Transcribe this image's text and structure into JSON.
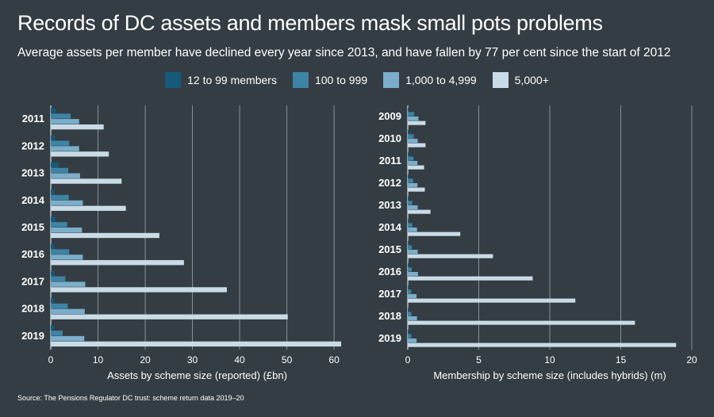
{
  "title": "Records of DC assets and members mask small pots problems",
  "subtitle": "Average assets per member have declined every year since 2013, and have fallen by 77 per cent since the start of 2012",
  "source": "Source: The Pensions Regulator DC trust: scheme return data 2019–20",
  "colors": {
    "background": "#333d43",
    "grid": "#8a9196",
    "text": "#ffffff"
  },
  "chart_data": [
    {
      "type": "bar",
      "orientation": "horizontal",
      "xlabel": "Assets by scheme size (reported) (£bn)",
      "xlim": [
        0,
        62
      ],
      "xticks": [
        0,
        10,
        20,
        30,
        40,
        50,
        60
      ],
      "grid": "vertical",
      "legend": "top-center",
      "categories": [
        "2011",
        "2012",
        "2013",
        "2014",
        "2015",
        "2016",
        "2017",
        "2018",
        "2019"
      ],
      "series": [
        {
          "name": "12 to 99 members",
          "color": "#155a7b",
          "values": [
            1.0,
            0.9,
            1.7,
            0.8,
            1.0,
            0.8,
            0.8,
            0.7,
            0.7
          ]
        },
        {
          "name": "100 to 999",
          "color": "#3d84a6",
          "values": [
            4.2,
            3.9,
            3.7,
            3.8,
            3.5,
            3.9,
            3.1,
            3.6,
            2.5
          ]
        },
        {
          "name": "1,000 to 4,999",
          "color": "#7aaecb",
          "values": [
            6.0,
            6.0,
            6.2,
            6.8,
            6.6,
            6.8,
            7.3,
            7.2,
            7.1
          ]
        },
        {
          "name": "5,000+",
          "color": "#c9dbe6",
          "values": [
            11.2,
            12.3,
            15.0,
            15.9,
            23.0,
            28.2,
            37.3,
            50.2,
            61.5
          ]
        }
      ]
    },
    {
      "type": "bar",
      "orientation": "horizontal",
      "xlabel": "Membership by scheme size (includes hybrids) (m)",
      "xlim": [
        0,
        20
      ],
      "xticks": [
        0,
        5,
        10,
        15,
        20
      ],
      "grid": "vertical",
      "legend": "top-center",
      "categories": [
        "2009",
        "2010",
        "2011",
        "2012",
        "2013",
        "2014",
        "2015",
        "2016",
        "2017",
        "2018",
        "2019"
      ],
      "series": [
        {
          "name": "12 to 99 members",
          "color": "#155a7b",
          "values": [
            0.05,
            0.05,
            0.05,
            0.05,
            0.05,
            0.05,
            0.05,
            0.05,
            0.05,
            0.05,
            0.05
          ]
        },
        {
          "name": "100 to 999",
          "color": "#3d84a6",
          "values": [
            0.45,
            0.42,
            0.4,
            0.38,
            0.32,
            0.32,
            0.28,
            0.28,
            0.25,
            0.25,
            0.25
          ]
        },
        {
          "name": "1,000 to 4,999",
          "color": "#7aaecb",
          "values": [
            0.75,
            0.7,
            0.68,
            0.68,
            0.7,
            0.65,
            0.7,
            0.72,
            0.62,
            0.65,
            0.62
          ]
        },
        {
          "name": "5,000+",
          "color": "#c9dbe6",
          "values": [
            1.25,
            1.25,
            1.15,
            1.2,
            1.6,
            3.7,
            6.0,
            8.8,
            11.8,
            16.0,
            18.9
          ]
        }
      ]
    }
  ]
}
